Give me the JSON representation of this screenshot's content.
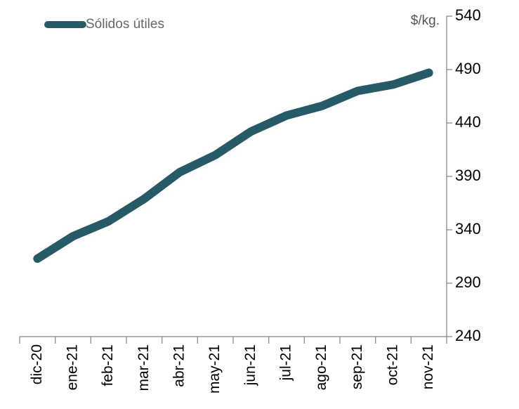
{
  "chart_data": {
    "type": "line",
    "categories": [
      "dic-20",
      "ene-21",
      "feb-21",
      "mar-21",
      "abr-21",
      "may-21",
      "jun-21",
      "jul-21",
      "ago-21",
      "sep-21",
      "oct-21",
      "nov-21"
    ],
    "series": [
      {
        "name": "Sólidos útiles",
        "color": "#265a66",
        "values": [
          313,
          334,
          348,
          369,
          394,
          410,
          432,
          447,
          456,
          470,
          476,
          487
        ]
      }
    ],
    "y_axis_label": "$/kg.",
    "ylim": [
      240,
      540
    ],
    "yticks": [
      240,
      290,
      340,
      390,
      440,
      490,
      540
    ],
    "y_axis_side": "right",
    "legend": "top-left",
    "grid": false
  }
}
